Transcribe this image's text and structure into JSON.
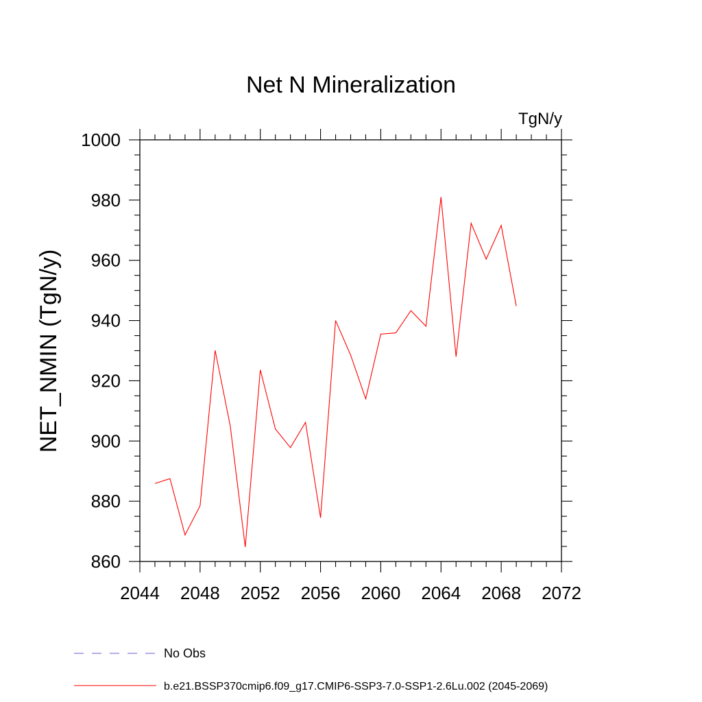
{
  "chart_data": {
    "type": "line",
    "title": "Net N Mineralization",
    "units_label": "TgN/y",
    "ylabel": "NET_NMIN  (TgN/y)",
    "xlabel": "",
    "xlim": [
      2044,
      2072
    ],
    "ylim": [
      860,
      1000
    ],
    "x_ticks": [
      2044,
      2048,
      2052,
      2056,
      2060,
      2064,
      2068,
      2072
    ],
    "y_ticks": [
      860,
      880,
      900,
      920,
      940,
      960,
      980,
      1000
    ],
    "grid": false,
    "series": [
      {
        "name": "b.e21.BSSP370cmip6.f09_g17.CMIP6-SSP3-7.0-SSP1-2.6Lu.002 (2045-2069)",
        "color": "#ff0000",
        "x": [
          2045,
          2046,
          2047,
          2048,
          2049,
          2050,
          2051,
          2052,
          2053,
          2054,
          2055,
          2056,
          2057,
          2058,
          2059,
          2060,
          2061,
          2062,
          2063,
          2064,
          2065,
          2066,
          2067,
          2068,
          2069
        ],
        "values": [
          885.9,
          887.5,
          868.8,
          878.5,
          930.1,
          905.1,
          864.8,
          923.6,
          904.0,
          897.8,
          906.2,
          874.5,
          940.0,
          928.5,
          914.0,
          935.5,
          935.9,
          943.3,
          938.1,
          981.0,
          928.0,
          972.3,
          960.4,
          971.6,
          944.8
        ]
      }
    ]
  },
  "legend": {
    "entries": [
      {
        "label": "No Obs",
        "color": "#6a5acd",
        "style": "dashed"
      },
      {
        "label": "b.e21.BSSP370cmip6.f09_g17.CMIP6-SSP3-7.0-SSP1-2.6Lu.002 (2045-2069)",
        "color": "#ff0000",
        "style": "solid"
      }
    ]
  }
}
